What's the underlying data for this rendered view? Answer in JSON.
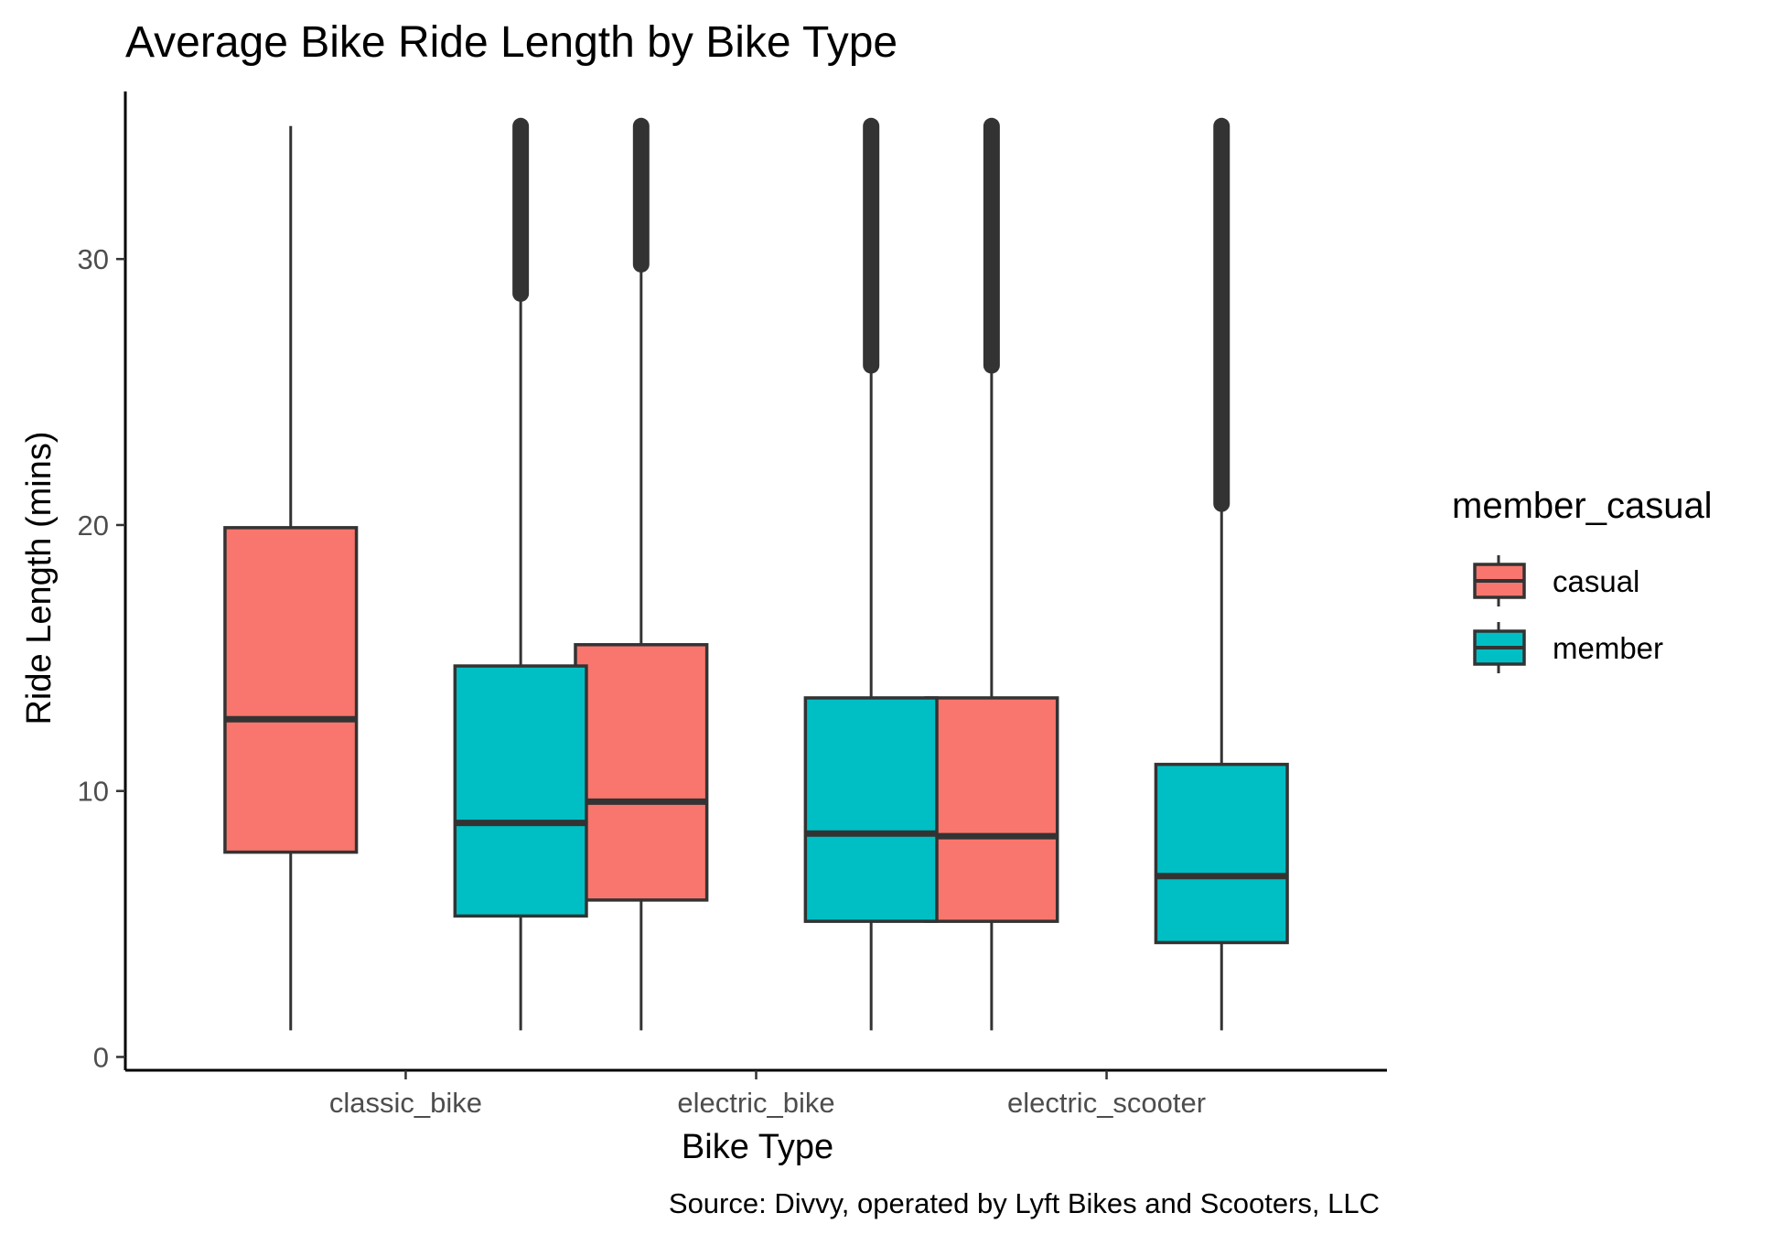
{
  "chart_data": {
    "type": "boxplot",
    "title": "Average Bike Ride Length by Bike Type",
    "xlabel": "Bike Type",
    "ylabel": "Ride Length (mins)",
    "caption": "Source: Divvy, operated by Lyft Bikes and Scooters, LLC",
    "ylim": [
      -0.5,
      36.3
    ],
    "yticks": [
      0,
      10,
      20,
      30
    ],
    "categories": [
      "classic_bike",
      "electric_bike",
      "electric_scooter"
    ],
    "grid": false,
    "legend": {
      "title": "member_casual",
      "position": "right",
      "entries": [
        {
          "name": "casual",
          "color": "#F8766D"
        },
        {
          "name": "member",
          "color": "#00BFC4"
        }
      ]
    },
    "series": [
      {
        "name": "casual",
        "color": "#F8766D",
        "boxes": [
          {
            "category": "classic_bike",
            "whisker_low": 1.0,
            "q1": 7.7,
            "median": 12.7,
            "q3": 19.9,
            "whisker_high": 35.0,
            "outliers_from": null,
            "outliers_to": null
          },
          {
            "category": "electric_bike",
            "whisker_low": 1.0,
            "q1": 5.9,
            "median": 9.6,
            "q3": 15.5,
            "whisker_high": 29.8,
            "outliers_from": 29.8,
            "outliers_to": 35.0
          },
          {
            "category": "electric_scooter",
            "whisker_low": 1.0,
            "q1": 5.1,
            "median": 8.3,
            "q3": 13.5,
            "whisker_high": 26.0,
            "outliers_from": 26.0,
            "outliers_to": 35.0
          }
        ]
      },
      {
        "name": "member",
        "color": "#00BFC4",
        "boxes": [
          {
            "category": "classic_bike",
            "whisker_low": 1.0,
            "q1": 5.3,
            "median": 8.8,
            "q3": 14.7,
            "whisker_high": 28.7,
            "outliers_from": 28.7,
            "outliers_to": 35.0
          },
          {
            "category": "electric_bike",
            "whisker_low": 1.0,
            "q1": 5.1,
            "median": 8.4,
            "q3": 13.5,
            "whisker_high": 26.0,
            "outliers_from": 26.0,
            "outliers_to": 35.0
          },
          {
            "category": "electric_scooter",
            "whisker_low": 1.0,
            "q1": 4.3,
            "median": 6.8,
            "q3": 11.0,
            "whisker_high": 20.8,
            "outliers_from": 20.8,
            "outliers_to": 35.0
          }
        ]
      }
    ]
  }
}
